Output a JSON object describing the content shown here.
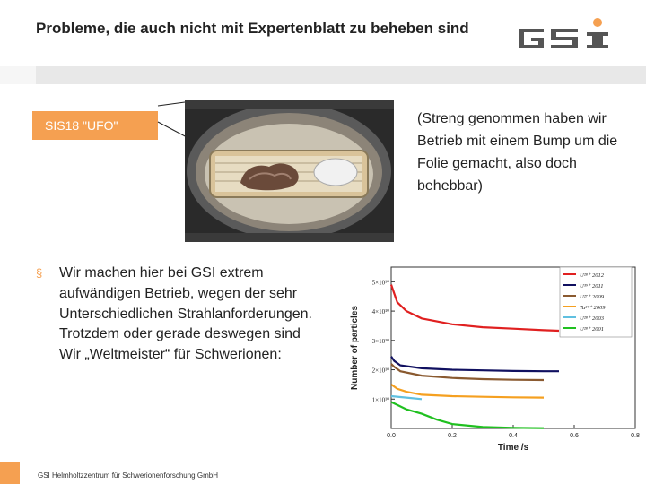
{
  "slide": {
    "title": "Probleme, die auch nicht mit Expertenblatt zu beheben sind",
    "logo_text": "GSI",
    "label": "SIS18 \"UFO\"",
    "note": "(Streng genommen haben wir Betrieb mit einem Bump um die Folie gemacht, also doch behebbar)",
    "bullet_marker": "§",
    "bullet_text": "Wir machen hier bei GSI extrem aufwändigen Betrieb, wegen der sehr Unterschiedlichen Strahlanforderungen. Trotzdem oder gerade deswegen sind Wir „Weltmeister“ für Schwerionen:",
    "footer": "GSI Helmholtzzentrum für Schwerionenforschung GmbH"
  },
  "colors": {
    "accent": "#f5a051"
  },
  "chart_data": {
    "type": "line",
    "xlabel": "Time /s",
    "ylabel": "Number of particles",
    "xlim": [
      0,
      0.8
    ],
    "ylim": [
      0,
      55000000000.0
    ],
    "x_ticks": [
      "0.0",
      "0.2",
      "0.4",
      "0.6",
      "0.8"
    ],
    "y_ticks": [
      "1×10¹⁰",
      "2×10¹⁰",
      "3×10¹⁰",
      "4×10¹⁰",
      "5×10¹⁰"
    ],
    "legend_position": "top-right",
    "series": [
      {
        "name": "U²⁸⁺ 2012",
        "color": "#e02020",
        "x": [
          0,
          0.01,
          0.02,
          0.05,
          0.1,
          0.2,
          0.3,
          0.4,
          0.5,
          0.55
        ],
        "y": [
          49000000000.0,
          46000000000.0,
          43000000000.0,
          40000000000.0,
          37500000000.0,
          35500000000.0,
          34500000000.0,
          34000000000.0,
          33500000000.0,
          33300000000.0
        ]
      },
      {
        "name": "U³⁹⁺ 2011",
        "color": "#101060",
        "x": [
          0,
          0.01,
          0.03,
          0.1,
          0.2,
          0.3,
          0.4,
          0.5,
          0.55
        ],
        "y": [
          24500000000.0,
          23000000000.0,
          21500000000.0,
          20500000000.0,
          20000000000.0,
          19800000000.0,
          19600000000.0,
          19500000000.0,
          19500000000.0
        ]
      },
      {
        "name": "U²⁷⁺ 2009",
        "color": "#8a5a30",
        "x": [
          0,
          0.01,
          0.03,
          0.1,
          0.2,
          0.3,
          0.4,
          0.5
        ],
        "y": [
          22000000000.0,
          21000000000.0,
          19500000000.0,
          18000000000.0,
          17200000000.0,
          16800000000.0,
          16600000000.0,
          16500000000.0
        ]
      },
      {
        "name": "Ta²⁴⁺ 2009",
        "color": "#f5a020",
        "x": [
          0,
          0.02,
          0.05,
          0.1,
          0.2,
          0.3,
          0.4,
          0.5
        ],
        "y": [
          15000000000.0,
          13500000000.0,
          12500000000.0,
          11500000000.0,
          11000000000.0,
          10800000000.0,
          10600000000.0,
          10500000000.0
        ]
      },
      {
        "name": "U²⁸⁺ 2003",
        "color": "#60c0e0",
        "x": [
          0,
          0.05,
          0.1
        ],
        "y": [
          11000000000.0,
          10500000000.0,
          10000000000.0
        ]
      },
      {
        "name": "U²⁸⁺ 2001",
        "color": "#20c020",
        "x": [
          0,
          0.02,
          0.05,
          0.1,
          0.15,
          0.2,
          0.3,
          0.4,
          0.5
        ],
        "y": [
          9000000000.0,
          8000000000.0,
          6500000000.0,
          5000000000.0,
          3000000000.0,
          1500000000.0,
          500000000.0,
          200000000.0,
          100000000.0
        ]
      }
    ]
  }
}
